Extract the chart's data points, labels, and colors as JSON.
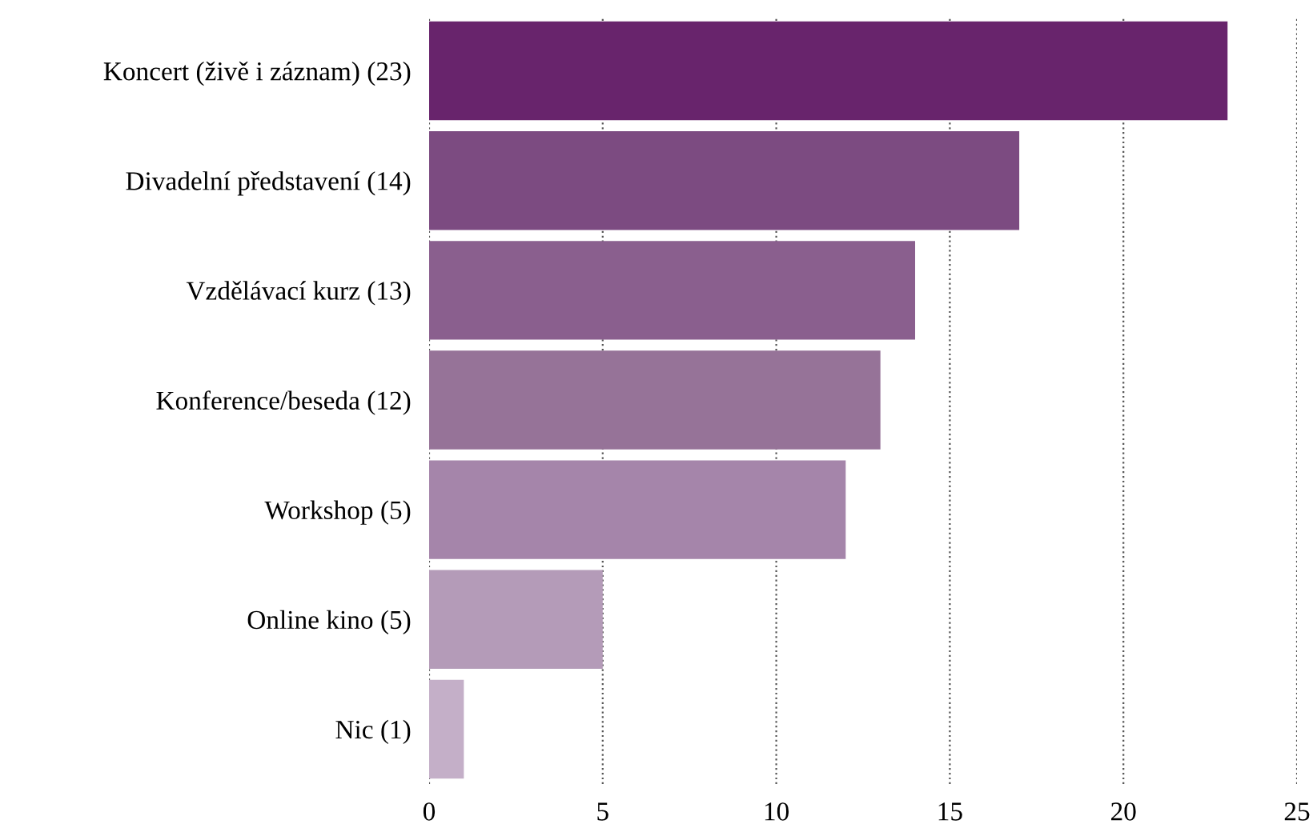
{
  "chart_data": {
    "type": "bar",
    "orientation": "horizontal",
    "categories": [
      "Koncert (živě i záznam) (23)",
      "Divadelní představení (14)",
      "Vzdělávací kurz (13)",
      "Konference/beseda (12)",
      "Workshop (5)",
      "Online kino (5)",
      "Nic (1)"
    ],
    "values": [
      23,
      17,
      14,
      13,
      12,
      5,
      1
    ],
    "colors": [
      "#68246c",
      "#7c4b81",
      "#8a5f8e",
      "#967398",
      "#a585aa",
      "#b49bb8",
      "#c4afc8"
    ],
    "xlim": [
      0,
      25
    ],
    "xticks": [
      0,
      5,
      10,
      15,
      20,
      25
    ],
    "grid": "x",
    "line_style": "dotted"
  }
}
